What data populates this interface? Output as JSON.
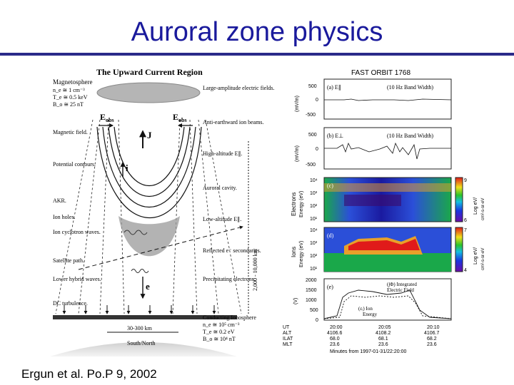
{
  "slide": {
    "title": "Auroral zone physics",
    "citation": "Ergun et al. Po.P 9, 2002"
  },
  "left_figure": {
    "title": "The Upward Current Region",
    "magnetosphere": {
      "label": "Magnetosphere",
      "params": [
        "n_e ≅ 1 cm⁻³",
        "T_e ≅ 0.5 keV",
        "B_o ≅ 25 nT"
      ]
    },
    "labels_left": [
      "Magnetic field.",
      "Potential contours.",
      "AKR.",
      "Ion holes.",
      "Ion cyclotron waves.",
      "Satellite path.",
      "Lower hybrid waves.",
      "DC turbulence."
    ],
    "labels_right": [
      "Large-amplitude electric fields.",
      "Anti-earthward ion beams.",
      "High-altitude E∥.",
      "Auroral cavity.",
      "Low-altitude E∥.",
      "Reflected e⁻ secondaries.",
      "Precipitating electrons.",
      "Conducting Ionosphere"
    ],
    "ionosphere_params": [
      "n_e ≅ 10⁵ cm⁻³",
      "T_e ≅ 0.2 eV",
      "B_o ≅ 10⁴ nT"
    ],
    "eobs": "E",
    "eobs_sub": "obs",
    "j_label": "J",
    "i_label": "i",
    "e_label": "e",
    "altitude_label": "2,000 - 10,000 km",
    "width_label": "30-300 km",
    "direction_label": "South/North"
  },
  "right_figure": {
    "title": "FAST ORBIT 1768",
    "panel_a": {
      "tag": "(a) E∥",
      "note": "(10 Hz Band Width)",
      "ylabel": "(mV/m)",
      "ticks": [
        "500",
        "0",
        "-500"
      ]
    },
    "panel_b": {
      "tag": "(b) E⊥",
      "note": "(10 Hz Band Width)",
      "ylabel": "(mV/m)",
      "ticks": [
        "500",
        "0",
        "-500"
      ]
    },
    "panel_c": {
      "tag": "(c)",
      "ylabel": "Electrons",
      "ylabel2": "Energy (eV)",
      "ticks": [
        "10⁴",
        "10³",
        "10²",
        "10¹"
      ],
      "cbar_label": "Log eV/",
      "cbar_label2": "cm²-s-sr-eV",
      "cbar_ticks": [
        "9",
        "6"
      ]
    },
    "panel_d": {
      "tag": "(d)",
      "ylabel": "Ions",
      "ylabel2": "Energy (eV)",
      "ticks": [
        "10⁴",
        "10³",
        "10²",
        "10¹"
      ],
      "cbar_label": "Log eV/",
      "cbar_label2": "cm²-s-sr-eV",
      "cbar_ticks": [
        "7",
        "4"
      ]
    },
    "panel_e": {
      "tag": "(e)",
      "ylabel": "(V)",
      "ticks": [
        "2000",
        "1500",
        "1000",
        "500",
        "0"
      ],
      "legend1": "(∫Φ) Integrated",
      "legend1b": "Electric Field",
      "legend2": "(εᵢ) Ion",
      "legend2b": "Energy"
    },
    "xaxis": {
      "row_labels": [
        "UT",
        "ALT",
        "ILAT",
        "MLT"
      ],
      "columns": [
        [
          "20:00",
          "4106.6",
          "68.0",
          "23.6"
        ],
        [
          "20:05",
          "4108.2",
          "68.1",
          "23.6"
        ],
        [
          "20:10",
          "4106.7",
          "68.2",
          "23.6"
        ]
      ],
      "footer": "Minutes from 1997-01-31/22:20:00"
    }
  }
}
